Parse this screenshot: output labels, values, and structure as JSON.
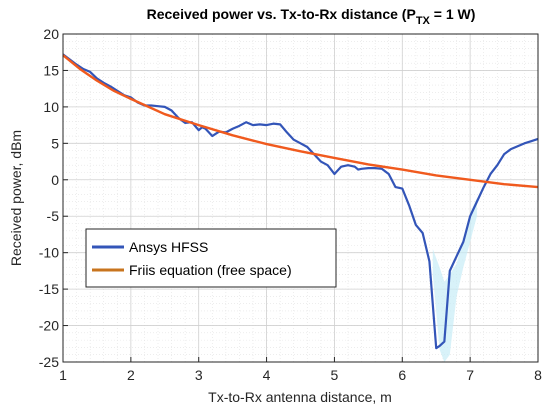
{
  "chart_data": {
    "type": "line",
    "title": "Received power vs. Tx-to-Rx distance (P",
    "title_sub": "TX",
    "title_tail": " = 1 W)",
    "xlabel": "Tx-to-Rx antenna distance, m",
    "ylabel": "Received power, dBm",
    "xlim": [
      1,
      8
    ],
    "ylim": [
      -25,
      20
    ],
    "xticks": [
      "1",
      "2",
      "3",
      "4",
      "5",
      "6",
      "7",
      "8"
    ],
    "yticks": [
      "20",
      "15",
      "10",
      "5",
      "0",
      "-5",
      "-10",
      "-15",
      "-20",
      "-25"
    ],
    "grid": true,
    "minor_grid": true,
    "legend_position": "lower-left",
    "colors": {
      "ansys_line": "#3355b8",
      "ansys_shade": "#c7ecf6",
      "friis_line": "#f05a1e",
      "friis_legend": "#c8741e"
    },
    "series": [
      {
        "name": "Ansys HFSS",
        "x": [
          1.0,
          1.1,
          1.2,
          1.3,
          1.4,
          1.5,
          1.6,
          1.7,
          1.8,
          1.9,
          2.0,
          2.1,
          2.2,
          2.3,
          2.4,
          2.5,
          2.6,
          2.7,
          2.8,
          2.9,
          3.0,
          3.05,
          3.1,
          3.2,
          3.25,
          3.3,
          3.4,
          3.5,
          3.6,
          3.7,
          3.8,
          3.9,
          4.0,
          4.1,
          4.2,
          4.3,
          4.4,
          4.5,
          4.6,
          4.7,
          4.8,
          4.9,
          5.0,
          5.1,
          5.2,
          5.3,
          5.35,
          5.4,
          5.5,
          5.6,
          5.7,
          5.8,
          5.9,
          6.0,
          6.1,
          6.2,
          6.3,
          6.4,
          6.5,
          6.55,
          6.62,
          6.7,
          6.8,
          6.9,
          7.0,
          7.1,
          7.2,
          7.3,
          7.4,
          7.5,
          7.6,
          7.7,
          7.8,
          7.9,
          8.0
        ],
        "values": [
          17.2,
          16.5,
          15.8,
          15.2,
          14.8,
          13.9,
          13.3,
          12.8,
          12.2,
          11.6,
          11.3,
          10.6,
          10.2,
          10.2,
          10.1,
          10.0,
          9.5,
          8.5,
          7.8,
          7.9,
          6.8,
          7.2,
          7.0,
          6.0,
          6.3,
          6.6,
          6.5,
          7.0,
          7.4,
          7.9,
          7.5,
          7.6,
          7.5,
          7.7,
          7.6,
          6.5,
          5.5,
          5.0,
          4.5,
          3.5,
          2.5,
          2.0,
          0.8,
          1.8,
          2.0,
          1.8,
          1.4,
          1.5,
          1.6,
          1.6,
          1.5,
          0.8,
          -1.0,
          -1.2,
          -3.5,
          -6.2,
          -7.3,
          -11.2,
          -23.1,
          -22.8,
          -22.2,
          -12.5,
          -10.5,
          -8.5,
          -5.0,
          -3.0,
          -1.0,
          0.8,
          2.0,
          3.5,
          4.2,
          4.6,
          5.0,
          5.3,
          5.6
        ]
      },
      {
        "name": "Friis equation (free space)",
        "x": [
          1.0,
          1.25,
          1.5,
          1.75,
          2.0,
          2.5,
          3.0,
          3.5,
          4.0,
          4.5,
          5.0,
          5.5,
          6.0,
          6.5,
          7.0,
          7.5,
          8.0
        ],
        "values": [
          17.1,
          15.2,
          13.6,
          12.2,
          11.1,
          9.0,
          7.5,
          6.1,
          4.9,
          3.9,
          3.0,
          2.1,
          1.4,
          0.6,
          0.0,
          -0.6,
          -1.0
        ]
      }
    ],
    "shaded_band": {
      "x": [
        6.45,
        6.55,
        6.62,
        6.7,
        6.8,
        6.9,
        7.0,
        7.1
      ],
      "upper": [
        -9.5,
        -12.0,
        -14.0,
        -13.0,
        -11.5,
        -8.0,
        -4.5,
        -2.5
      ],
      "lower": [
        -13.0,
        -23.3,
        -25.0,
        -24.0,
        -16.0,
        -12.0,
        -8.5,
        -5.0
      ]
    }
  }
}
